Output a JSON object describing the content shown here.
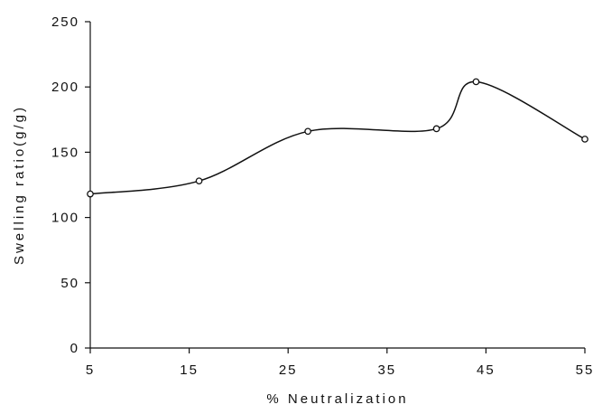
{
  "chart_data": {
    "type": "line",
    "xlabel": "% Neutralization",
    "ylabel": "Swelling ratio(g/g)",
    "xlim": [
      5,
      55
    ],
    "ylim": [
      0,
      250
    ],
    "xticks": [
      5,
      15,
      25,
      35,
      45,
      55
    ],
    "yticks": [
      0,
      50,
      100,
      150,
      200,
      250
    ],
    "grid": false,
    "smooth": true,
    "series": [
      {
        "x": [
          5,
          16,
          27,
          40,
          44,
          55
        ],
        "y": [
          118,
          128,
          166,
          168,
          204,
          160
        ]
      }
    ]
  }
}
